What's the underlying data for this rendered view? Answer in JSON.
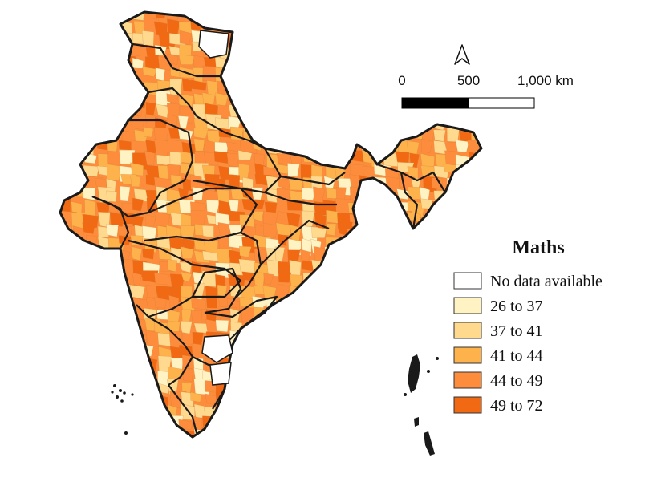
{
  "legend": {
    "title": "Maths",
    "classes": [
      {
        "label": "No data available",
        "color": "#ffffff"
      },
      {
        "label": "26 to 37",
        "color": "#fff3c4"
      },
      {
        "label": "37 to 41",
        "color": "#fed98e"
      },
      {
        "label": "41 to 44",
        "color": "#feb24c"
      },
      {
        "label": "44 to 49",
        "color": "#fd8d3c"
      },
      {
        "label": "49 to 72",
        "color": "#f16913"
      }
    ]
  },
  "scale_bar": {
    "labels": [
      "0",
      "500",
      "1,000 km"
    ]
  },
  "north_arrow": {
    "icon": "north-arrow-icon"
  },
  "map": {
    "outline_color": "#1a1a1a"
  }
}
